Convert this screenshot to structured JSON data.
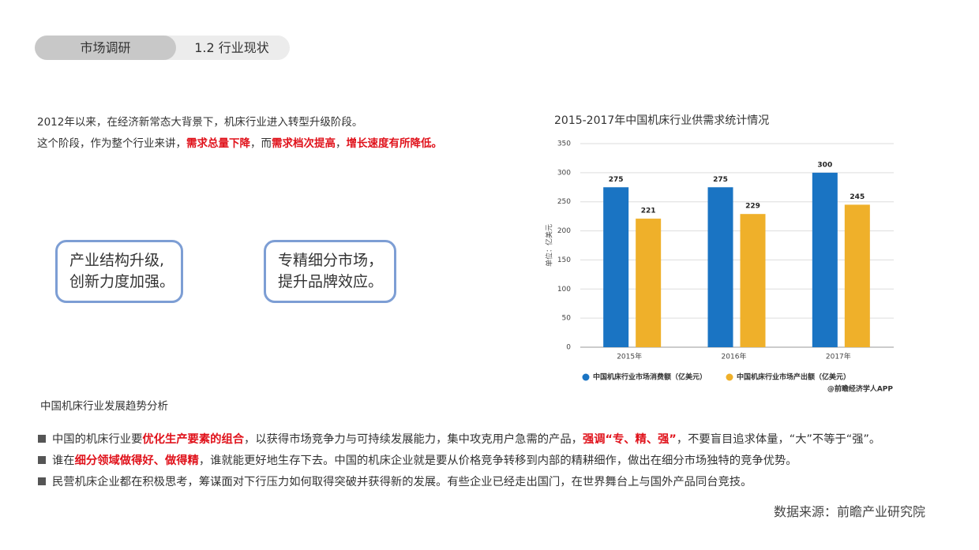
{
  "header": {
    "section": "市场调研",
    "subsection": "1.2 行业现状"
  },
  "intro": [
    [
      {
        "text": "2012年以来，在经济新常态大背景下，机床行业进入转型升级阶段。",
        "red": false
      }
    ],
    [
      {
        "text": "这个阶段，作为整个行业来讲，",
        "red": false
      },
      {
        "text": "需求总量下降",
        "red": true
      },
      {
        "text": "，而",
        "red": false
      },
      {
        "text": "需求档次提高",
        "red": true
      },
      {
        "text": "，",
        "red": false
      },
      {
        "text": "增长速度有所降低。",
        "red": true
      }
    ]
  ],
  "boxes": [
    [
      "产业结构升级,",
      "创新力度加强。"
    ],
    [
      "专精细分市场，",
      "提升品牌效应。"
    ]
  ],
  "chart_data": {
    "type": "bar",
    "title": "2015-2017年中国机床行业供需求统计情况",
    "y_label": "单位：亿美元",
    "categories": [
      "2015年",
      "2016年",
      "2017年"
    ],
    "series": [
      {
        "name": "中国机床行业市场消费额（亿美元）",
        "color": "#1a74c3",
        "values": [
          275,
          275,
          300
        ]
      },
      {
        "name": "中国机床行业市场产出额（亿美元）",
        "color": "#efb02a",
        "values": [
          221,
          229,
          245
        ]
      }
    ],
    "ylim": [
      0,
      350
    ],
    "yticks": [
      0,
      50,
      100,
      150,
      200,
      250,
      300,
      350
    ],
    "grid": true,
    "source": "@前瞻经济学人APP"
  },
  "subtitle": "中国机床行业发展趋势分析",
  "bullets": [
    [
      {
        "text": "中国的机床行业要",
        "red": false
      },
      {
        "text": "优化生产要素的组合",
        "red": true
      },
      {
        "text": "，以获得市场竞争力与可持续发展能力，集中攻克用户急需的产品，",
        "red": false
      },
      {
        "text": "强调“专、精、强”",
        "red": true
      },
      {
        "text": "，不要盲目追求体量，“大”不等于“强”。",
        "red": false
      }
    ],
    [
      {
        "text": "谁在",
        "red": false
      },
      {
        "text": "细分领域做得好、做得精",
        "red": true
      },
      {
        "text": "，谁就能更好地生存下去。中国的机床企业就是要从价格竞争转移到内部的精耕细作，做出在细分市场独特的竞争优势。",
        "red": false
      }
    ],
    [
      {
        "text": "民营机床企业都在积极思考，筹谋面对下行压力如何取得突破并获得新的发展。有些企业已经走出国门，在世界舞台上与国外产品同台竞技。",
        "red": false
      }
    ]
  ],
  "footer": "数据来源：前瞻产业研究院"
}
